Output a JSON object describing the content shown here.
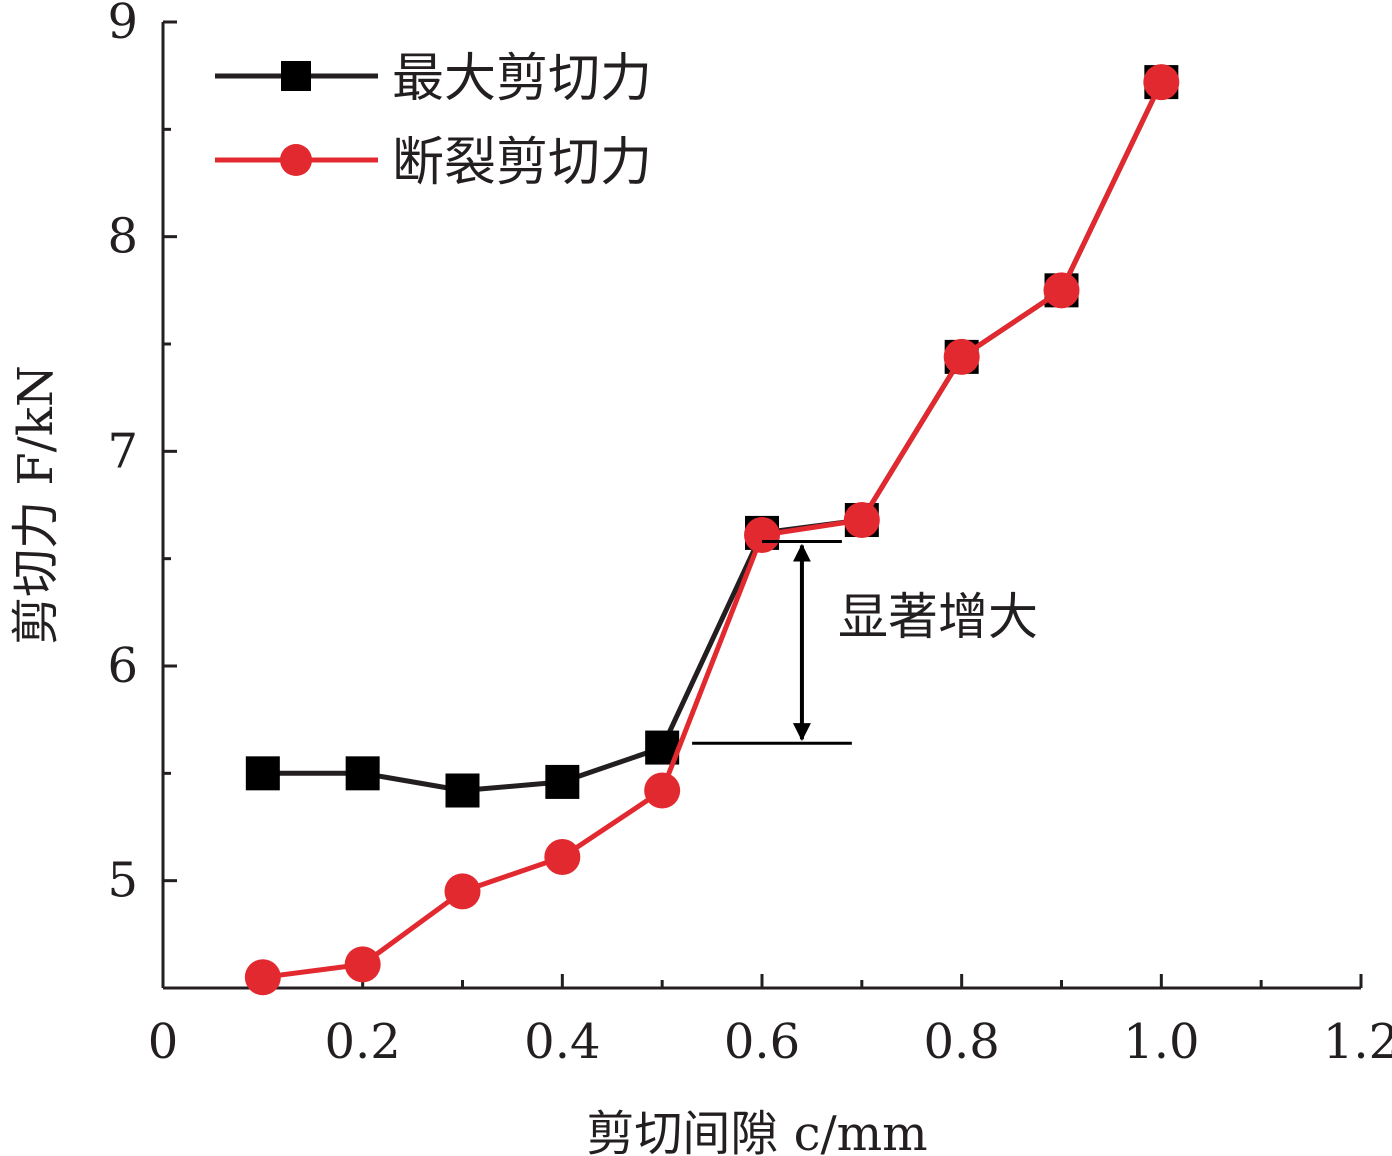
{
  "chart_data": {
    "type": "line",
    "title": "",
    "xlabel": "剪切间隙 c/mm",
    "ylabel": "剪切力 F/kN",
    "xlim": [
      0,
      1.2
    ],
    "ylim": [
      4.5,
      9
    ],
    "x_ticks": [
      {
        "value": 0,
        "label": "0"
      },
      {
        "value": 0.2,
        "label": "0.2"
      },
      {
        "value": 0.4,
        "label": "0.4"
      },
      {
        "value": 0.6,
        "label": "0.6"
      },
      {
        "value": 0.8,
        "label": "0.8"
      },
      {
        "value": 1.0,
        "label": "1.0"
      },
      {
        "value": 1.2,
        "label": "1.2"
      }
    ],
    "y_ticks": [
      {
        "value": 5,
        "label": "5"
      },
      {
        "value": 6,
        "label": "6"
      },
      {
        "value": 7,
        "label": "7"
      },
      {
        "value": 8,
        "label": "8"
      },
      {
        "value": 9,
        "label": "9"
      }
    ],
    "grid": false,
    "legend_position": "top-left",
    "x": [
      0.1,
      0.2,
      0.3,
      0.4,
      0.5,
      0.6,
      0.7,
      0.8,
      0.9,
      1.0
    ],
    "series": [
      {
        "name": "最大剪切力",
        "color": "#231f20",
        "marker": "square",
        "values": [
          5.5,
          5.5,
          5.42,
          5.46,
          5.62,
          6.62,
          6.68,
          7.44,
          7.75,
          8.72
        ]
      },
      {
        "name": "断裂剪切力",
        "color": "#e2292f",
        "marker": "circle",
        "values": [
          4.55,
          4.61,
          4.95,
          5.11,
          5.42,
          6.61,
          6.68,
          7.44,
          7.75,
          8.72
        ]
      }
    ],
    "annotations": [
      {
        "text": "显著增大",
        "x_range": [
          0.53,
          0.69
        ],
        "y_from": 5.64,
        "y_to": 6.58
      }
    ]
  }
}
